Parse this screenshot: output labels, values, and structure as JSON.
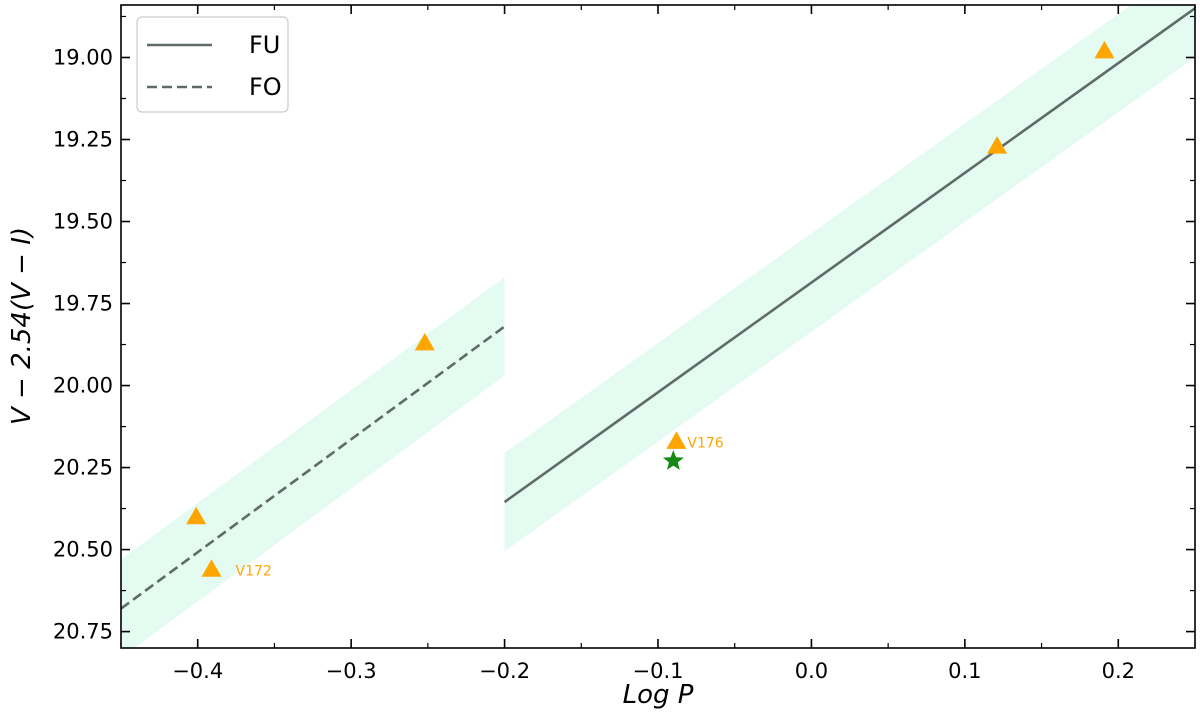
{
  "chart_data": {
    "type": "scatter",
    "xlabel": "Log P",
    "ylabel": "V − 2.54(V − I)",
    "xlim": [
      -0.45,
      0.25
    ],
    "ylim": [
      20.8,
      18.84
    ],
    "y_inverted": true,
    "x_ticks": [
      -0.4,
      -0.3,
      -0.2,
      -0.1,
      0.0,
      0.1,
      0.2
    ],
    "x_tick_labels": [
      "−0.4",
      "−0.3",
      "−0.2",
      "−0.1",
      "0.0",
      "0.1",
      "0.2"
    ],
    "y_ticks": [
      19.0,
      19.25,
      19.5,
      19.75,
      20.0,
      20.25,
      20.5,
      20.75
    ],
    "y_tick_labels": [
      "19.00",
      "19.25",
      "19.50",
      "19.75",
      "20.00",
      "20.25",
      "20.50",
      "20.75"
    ],
    "grid": false,
    "legend_position": "top-left",
    "colors": {
      "line": "#5f6b66",
      "band": "#e4fbf1",
      "triangle": "#ffa500",
      "star": "#138a13",
      "annotation": "#ffa500"
    },
    "lines": [
      {
        "name": "FU",
        "style": "solid",
        "x": [
          -0.2,
          0.25
        ],
        "y": [
          20.355,
          18.85
        ],
        "band_halfwidth": 0.15
      },
      {
        "name": "FO",
        "style": "dashed",
        "x": [
          -0.45,
          -0.2
        ],
        "y": [
          20.68,
          19.82
        ],
        "band_halfwidth": 0.15
      }
    ],
    "triangles": [
      {
        "x": -0.401,
        "y": 20.4
      },
      {
        "x": -0.391,
        "y": 20.56,
        "label": "V172"
      },
      {
        "x": -0.252,
        "y": 19.87
      },
      {
        "x": -0.088,
        "y": 20.17,
        "label": "V176"
      },
      {
        "x": 0.121,
        "y": 19.27
      },
      {
        "x": 0.191,
        "y": 18.98
      }
    ],
    "stars": [
      {
        "x": -0.09,
        "y": 20.23
      }
    ],
    "legend": [
      {
        "label": "FU",
        "style": "solid"
      },
      {
        "label": "FO",
        "style": "dashed"
      }
    ]
  }
}
